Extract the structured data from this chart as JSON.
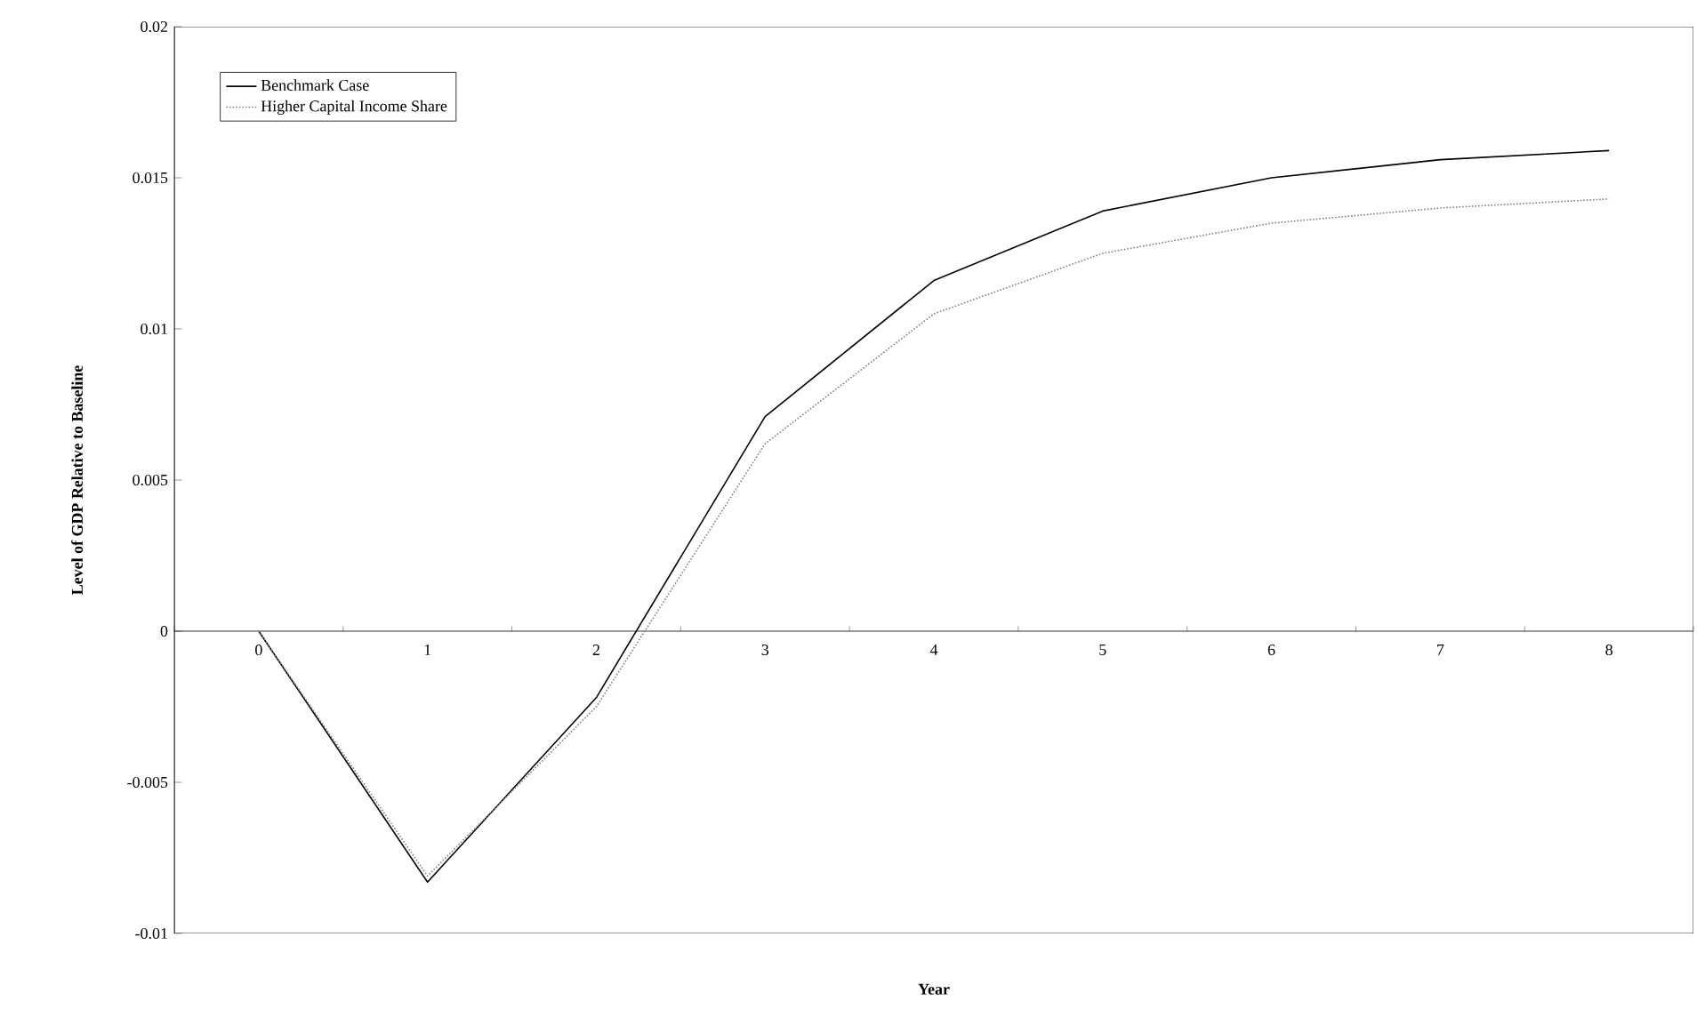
{
  "chart_data": {
    "type": "line",
    "xlabel": "Year",
    "ylabel": "Level of GDP Relative to Baseline",
    "categories": [
      "0",
      "1",
      "2",
      "3",
      "4",
      "5",
      "6",
      "7",
      "8"
    ],
    "series": [
      {
        "name": "Benchmark Case",
        "color": "#000000",
        "line_style": "solid",
        "values": [
          0,
          -0.0083,
          -0.0022,
          0.0071,
          0.0116,
          0.0139,
          0.015,
          0.0156,
          0.0159
        ]
      },
      {
        "name": "Higher Capital Income Share",
        "color": "#808080",
        "line_style": "dotted",
        "values": [
          0,
          -0.0081,
          -0.0025,
          0.0062,
          0.0105,
          0.0125,
          0.0135,
          0.014,
          0.0143
        ]
      }
    ],
    "ylim": [
      -0.01,
      0.02
    ],
    "yticks": [
      -0.01,
      -0.005,
      0,
      0.005,
      0.01,
      0.015,
      0.02
    ],
    "grid": false,
    "legend": "top left",
    "marker": "none"
  }
}
